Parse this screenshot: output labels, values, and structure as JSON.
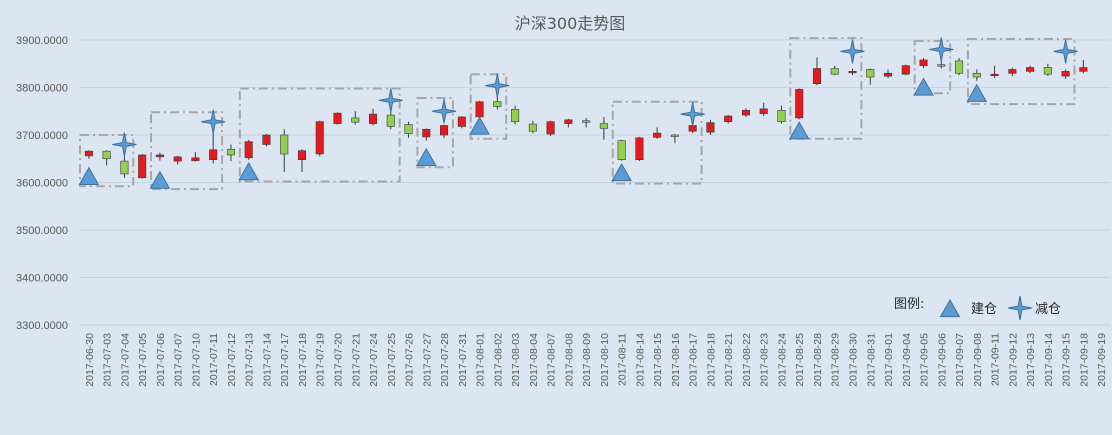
{
  "chart_data": {
    "type": "candlestick",
    "title": "沪深300走势图",
    "ylim": [
      3300,
      3900
    ],
    "yticks": [
      "3900.0000",
      "3800.0000",
      "3700.0000",
      "3600.0000",
      "3500.0000",
      "3400.0000",
      "3300.0000"
    ],
    "grid": true,
    "legend": {
      "title": "图例:",
      "placement": "bottom-right",
      "entries": [
        "建仓",
        "减仓"
      ]
    },
    "colors": {
      "up": "#e41a1c",
      "down": "#92d050",
      "candle_edge": "#3a3a3a",
      "marker": "#5b9bd5",
      "marker_edge": "#41719c",
      "box": "#a6a6a6",
      "grid": "#c9d3e0",
      "background": "#dce6f2"
    },
    "candles": [
      {
        "date": "2017-06-30",
        "open": 3656,
        "close": 3666,
        "high": 3668,
        "low": 3650
      },
      {
        "date": "2017-07-03",
        "open": 3666,
        "close": 3650,
        "high": 3668,
        "low": 3636
      },
      {
        "date": "2017-07-04",
        "open": 3645,
        "close": 3618,
        "high": 3655,
        "low": 3610
      },
      {
        "date": "2017-07-05",
        "open": 3610,
        "close": 3658,
        "high": 3660,
        "low": 3608
      },
      {
        "date": "2017-07-06",
        "open": 3654,
        "close": 3658,
        "high": 3663,
        "low": 3646
      },
      {
        "date": "2017-07-07",
        "open": 3645,
        "close": 3654,
        "high": 3656,
        "low": 3638
      },
      {
        "date": "2017-07-10",
        "open": 3646,
        "close": 3652,
        "high": 3664,
        "low": 3644
      },
      {
        "date": "2017-07-11",
        "open": 3648,
        "close": 3669,
        "high": 3705,
        "low": 3640
      },
      {
        "date": "2017-07-12",
        "open": 3670,
        "close": 3658,
        "high": 3680,
        "low": 3645
      },
      {
        "date": "2017-07-13",
        "open": 3652,
        "close": 3686,
        "high": 3690,
        "low": 3648
      },
      {
        "date": "2017-07-14",
        "open": 3680,
        "close": 3700,
        "high": 3702,
        "low": 3676
      },
      {
        "date": "2017-07-17",
        "open": 3700,
        "close": 3660,
        "high": 3712,
        "low": 3622
      },
      {
        "date": "2017-07-18",
        "open": 3648,
        "close": 3667,
        "high": 3670,
        "low": 3622
      },
      {
        "date": "2017-07-19",
        "open": 3660,
        "close": 3728,
        "high": 3730,
        "low": 3655
      },
      {
        "date": "2017-07-20",
        "open": 3724,
        "close": 3746,
        "high": 3748,
        "low": 3722
      },
      {
        "date": "2017-07-21",
        "open": 3736,
        "close": 3727,
        "high": 3750,
        "low": 3722
      },
      {
        "date": "2017-07-24",
        "open": 3724,
        "close": 3744,
        "high": 3755,
        "low": 3720
      },
      {
        "date": "2017-07-25",
        "open": 3742,
        "close": 3718,
        "high": 3755,
        "low": 3712
      },
      {
        "date": "2017-07-26",
        "open": 3722,
        "close": 3703,
        "high": 3728,
        "low": 3694
      },
      {
        "date": "2017-07-27",
        "open": 3696,
        "close": 3712,
        "high": 3714,
        "low": 3688
      },
      {
        "date": "2017-07-28",
        "open": 3700,
        "close": 3720,
        "high": 3722,
        "low": 3693
      },
      {
        "date": "2017-07-31",
        "open": 3718,
        "close": 3738,
        "high": 3740,
        "low": 3714
      },
      {
        "date": "2017-08-01",
        "open": 3738,
        "close": 3770,
        "high": 3772,
        "low": 3733
      },
      {
        "date": "2017-08-02",
        "open": 3770,
        "close": 3760,
        "high": 3790,
        "low": 3754
      },
      {
        "date": "2017-08-03",
        "open": 3754,
        "close": 3728,
        "high": 3762,
        "low": 3722
      },
      {
        "date": "2017-08-04",
        "open": 3723,
        "close": 3708,
        "high": 3730,
        "low": 3704
      },
      {
        "date": "2017-08-07",
        "open": 3702,
        "close": 3728,
        "high": 3730,
        "low": 3698
      },
      {
        "date": "2017-08-08",
        "open": 3724,
        "close": 3732,
        "high": 3734,
        "low": 3716
      },
      {
        "date": "2017-08-09",
        "open": 3730,
        "close": 3728,
        "high": 3736,
        "low": 3716
      },
      {
        "date": "2017-08-10",
        "open": 3724,
        "close": 3714,
        "high": 3738,
        "low": 3690
      },
      {
        "date": "2017-08-11",
        "open": 3688,
        "close": 3648,
        "high": 3690,
        "low": 3646
      },
      {
        "date": "2017-08-14",
        "open": 3648,
        "close": 3694,
        "high": 3696,
        "low": 3645
      },
      {
        "date": "2017-08-15",
        "open": 3695,
        "close": 3704,
        "high": 3716,
        "low": 3692
      },
      {
        "date": "2017-08-16",
        "open": 3700,
        "close": 3698,
        "high": 3702,
        "low": 3683
      },
      {
        "date": "2017-08-17",
        "open": 3708,
        "close": 3720,
        "high": 3728,
        "low": 3704
      },
      {
        "date": "2017-08-18",
        "open": 3706,
        "close": 3726,
        "high": 3732,
        "low": 3700
      },
      {
        "date": "2017-08-21",
        "open": 3728,
        "close": 3740,
        "high": 3742,
        "low": 3724
      },
      {
        "date": "2017-08-22",
        "open": 3742,
        "close": 3752,
        "high": 3756,
        "low": 3738
      },
      {
        "date": "2017-08-23",
        "open": 3745,
        "close": 3755,
        "high": 3768,
        "low": 3740
      },
      {
        "date": "2017-08-24",
        "open": 3752,
        "close": 3728,
        "high": 3762,
        "low": 3724
      },
      {
        "date": "2017-08-25",
        "open": 3736,
        "close": 3796,
        "high": 3798,
        "low": 3733
      },
      {
        "date": "2017-08-28",
        "open": 3808,
        "close": 3840,
        "high": 3863,
        "low": 3805
      },
      {
        "date": "2017-08-29",
        "open": 3840,
        "close": 3828,
        "high": 3846,
        "low": 3826
      },
      {
        "date": "2017-08-30",
        "open": 3833,
        "close": 3834,
        "high": 3840,
        "low": 3826
      },
      {
        "date": "2017-08-31",
        "open": 3838,
        "close": 3822,
        "high": 3840,
        "low": 3806
      },
      {
        "date": "2017-09-01",
        "open": 3824,
        "close": 3830,
        "high": 3838,
        "low": 3820
      },
      {
        "date": "2017-09-04",
        "open": 3828,
        "close": 3846,
        "high": 3848,
        "low": 3826
      },
      {
        "date": "2017-09-05",
        "open": 3846,
        "close": 3858,
        "high": 3862,
        "low": 3841
      },
      {
        "date": "2017-09-06",
        "open": 3848,
        "close": 3846,
        "high": 3860,
        "low": 3840
      },
      {
        "date": "2017-09-07",
        "open": 3856,
        "close": 3830,
        "high": 3862,
        "low": 3826
      },
      {
        "date": "2017-09-08",
        "open": 3830,
        "close": 3822,
        "high": 3838,
        "low": 3814
      },
      {
        "date": "2017-09-11",
        "open": 3826,
        "close": 3828,
        "high": 3846,
        "low": 3820
      },
      {
        "date": "2017-09-12",
        "open": 3830,
        "close": 3838,
        "high": 3842,
        "low": 3824
      },
      {
        "date": "2017-09-13",
        "open": 3834,
        "close": 3842,
        "high": 3846,
        "low": 3830
      },
      {
        "date": "2017-09-14",
        "open": 3842,
        "close": 3828,
        "high": 3850,
        "low": 3824
      },
      {
        "date": "2017-09-15",
        "open": 3824,
        "close": 3834,
        "high": 3838,
        "low": 3818
      },
      {
        "date": "2017-09-18",
        "open": 3834,
        "close": 3842,
        "high": 3858,
        "low": 3830
      },
      {
        "date": "2017-09-19",
        "open": null,
        "close": null,
        "high": null,
        "low": null
      }
    ],
    "build_markers": [
      {
        "date": "2017-06-30",
        "value": 3612
      },
      {
        "date": "2017-07-06",
        "value": 3604
      },
      {
        "date": "2017-07-13",
        "value": 3622
      },
      {
        "date": "2017-07-27",
        "value": 3652
      },
      {
        "date": "2017-08-01",
        "value": 3718
      },
      {
        "date": "2017-08-11",
        "value": 3620
      },
      {
        "date": "2017-08-25",
        "value": 3708
      },
      {
        "date": "2017-09-05",
        "value": 3800
      },
      {
        "date": "2017-09-08",
        "value": 3787
      }
    ],
    "reduce_markers": [
      {
        "date": "2017-07-04",
        "value": 3680
      },
      {
        "date": "2017-07-11",
        "value": 3728
      },
      {
        "date": "2017-07-25",
        "value": 3773
      },
      {
        "date": "2017-07-28",
        "value": 3750
      },
      {
        "date": "2017-08-02",
        "value": 3804
      },
      {
        "date": "2017-08-17",
        "value": 3744
      },
      {
        "date": "2017-08-30",
        "value": 3876
      },
      {
        "date": "2017-09-06",
        "value": 3880
      },
      {
        "date": "2017-09-15",
        "value": 3876
      }
    ],
    "boxes": [
      {
        "from": "2017-06-30",
        "to": "2017-07-04",
        "low": 3592,
        "high": 3700
      },
      {
        "from": "2017-07-06",
        "to": "2017-07-11",
        "low": 3586,
        "high": 3748
      },
      {
        "from": "2017-07-13",
        "to": "2017-07-25",
        "low": 3602,
        "high": 3798
      },
      {
        "from": "2017-07-27",
        "to": "2017-07-28",
        "low": 3632,
        "high": 3778
      },
      {
        "from": "2017-08-01",
        "to": "2017-08-02",
        "low": 3692,
        "high": 3828
      },
      {
        "from": "2017-08-11",
        "to": "2017-08-17",
        "low": 3598,
        "high": 3770
      },
      {
        "from": "2017-08-25",
        "to": "2017-08-30",
        "low": 3692,
        "high": 3904
      },
      {
        "from": "2017-09-05",
        "to": "2017-09-06",
        "low": 3788,
        "high": 3898
      },
      {
        "from": "2017-09-08",
        "to": "2017-09-15",
        "low": 3765,
        "high": 3902
      }
    ]
  }
}
